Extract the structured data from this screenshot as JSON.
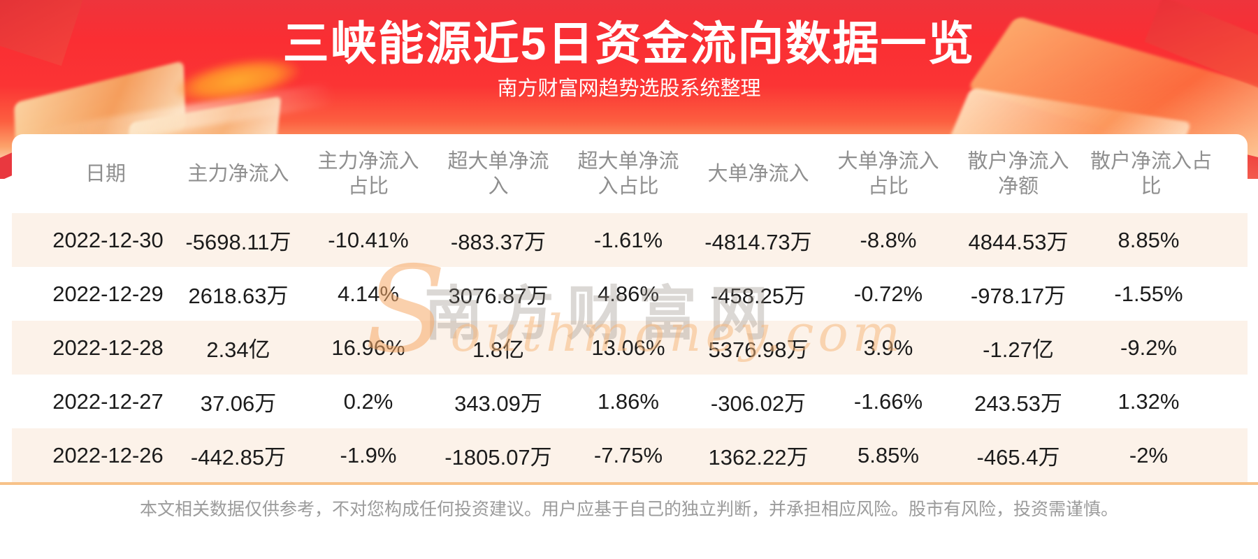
{
  "header": {
    "subtitle": "南方财富网趋势选股系统整理"
  },
  "chart_data": {
    "type": "table",
    "title": "三峡能源近5日资金流向数据一览",
    "columns": [
      "日期",
      "主力净流入",
      "主力净流入占比",
      "超大单净流入",
      "超大单净流入占比",
      "大单净流入",
      "大单净流入占比",
      "散户净流入净额",
      "散户净流入占比"
    ],
    "rows": [
      [
        "2022-12-30",
        "-5698.11万",
        "-10.41%",
        "-883.37万",
        "-1.61%",
        "-4814.73万",
        "-8.8%",
        "4844.53万",
        "8.85%"
      ],
      [
        "2022-12-29",
        "2618.63万",
        "4.14%",
        "3076.87万",
        "4.86%",
        "-458.25万",
        "-0.72%",
        "-978.17万",
        "-1.55%"
      ],
      [
        "2022-12-28",
        "2.34亿",
        "16.96%",
        "1.8亿",
        "13.06%",
        "5376.98万",
        "3.9%",
        "-1.27亿",
        "-9.2%"
      ],
      [
        "2022-12-27",
        "37.06万",
        "0.2%",
        "343.09万",
        "1.86%",
        "-306.02万",
        "-1.66%",
        "243.53万",
        "1.32%"
      ],
      [
        "2022-12-26",
        "-442.85万",
        "-1.9%",
        "-1805.07万",
        "-7.75%",
        "1362.22万",
        "5.85%",
        "-465.4万",
        "-2%"
      ]
    ]
  },
  "watermark": {
    "cjk": "南方财富网",
    "latin": "Southmoney.com"
  },
  "footer": {
    "disclaimer": "本文相关数据仅供参考，不对您构成任何投资建议。用户应基于自己的独立判断，并承担相应风险。股市有风险，投资需谨慎。"
  },
  "colors": {
    "banner_red": "#fa2f34",
    "row_stripe_peach": "#fcf2e9",
    "divider_orange": "#f7c289",
    "header_text_gray": "#8f8f8f",
    "body_text": "#1b1b1b",
    "title_white": "#ffffff"
  }
}
